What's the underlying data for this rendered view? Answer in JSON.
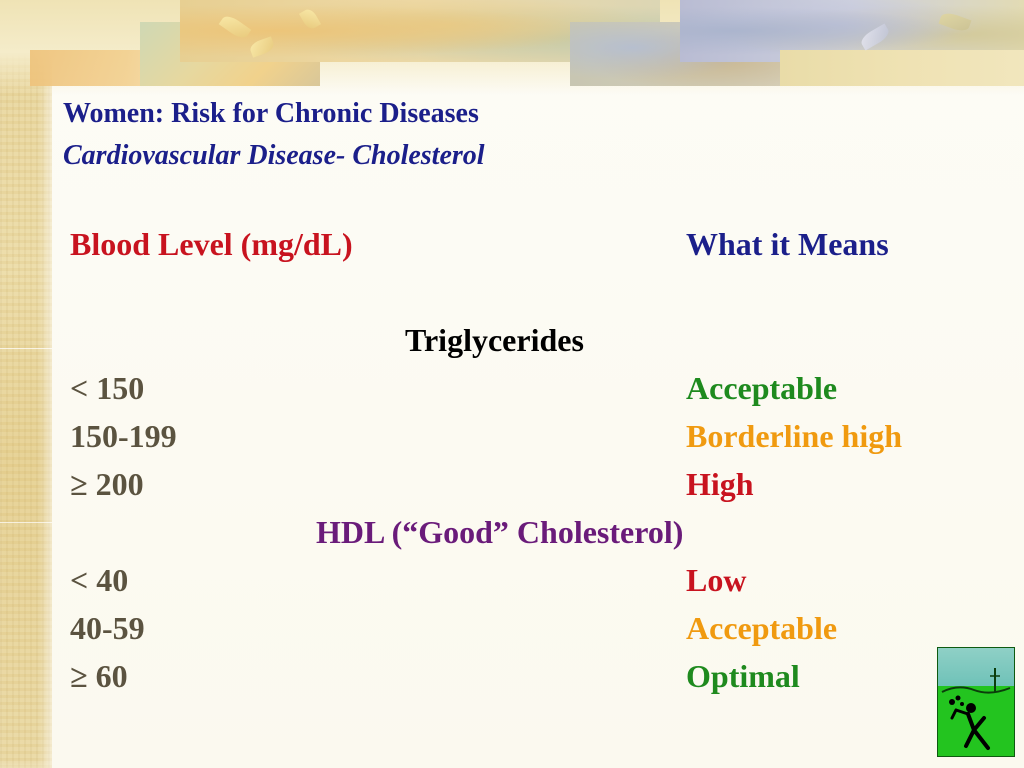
{
  "slide": {
    "title": "Women: Risk for Chronic Diseases",
    "subtitle": "Cardiovascular Disease- Cholesterol"
  },
  "table": {
    "header_left": "Blood Level (mg/dL)",
    "header_right": "What it Means",
    "sections": [
      {
        "heading": "Triglycerides",
        "heading_color": "#000000",
        "rows": [
          {
            "level": "< 150",
            "meaning": "Acceptable",
            "meaning_color": "#1e8a1e"
          },
          {
            "level": "150-199",
            "meaning": "Borderline high",
            "meaning_color": "#f09a10"
          },
          {
            "level": "≥ 200",
            "meaning": "High",
            "meaning_color": "#c8131f"
          }
        ]
      },
      {
        "heading": "HDL (“Good” Cholesterol)",
        "heading_color": "#6a1b7a",
        "rows": [
          {
            "level": "< 40",
            "meaning": "Low",
            "meaning_color": "#c8131f"
          },
          {
            "level": "40-59",
            "meaning": "Acceptable",
            "meaning_color": "#f09a10"
          },
          {
            "level": "≥ 60",
            "meaning": "Optimal",
            "meaning_color": "#1e8a1e"
          }
        ]
      }
    ]
  },
  "colors": {
    "title": "#1b1f8a",
    "header_left": "#c8131f",
    "header_right": "#1b1f8a",
    "level_text": "#5b5340"
  },
  "icons": {
    "corner_logo": "running-figure-logo-icon"
  }
}
